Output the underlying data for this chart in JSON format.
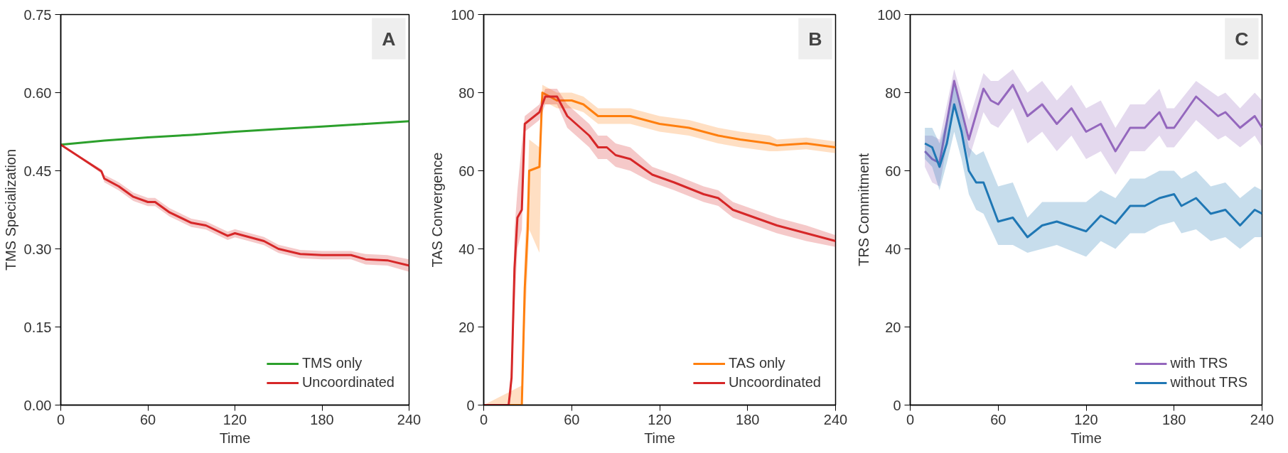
{
  "chart_data": [
    {
      "type": "line",
      "xlabel": "Time",
      "ylabel": "TMS Specialization",
      "annotations": [
        "A"
      ],
      "xlim": [
        0,
        240
      ],
      "ylim": [
        0,
        0.75
      ],
      "xticks": [
        0,
        60,
        120,
        180,
        240
      ],
      "yticks": [
        {
          "value": 0,
          "label": "0.00"
        },
        {
          "value": 0.15,
          "label": "0.15"
        },
        {
          "value": 0.3,
          "label": "0.30"
        },
        {
          "value": 0.45,
          "label": "0.45"
        },
        {
          "value": 0.6,
          "label": "0.60"
        },
        {
          "value": 0.75,
          "label": "0.75"
        }
      ],
      "grid": false,
      "legend": "bottom right",
      "line_style": "solid",
      "marker": "none",
      "series": [
        {
          "name": "TMS only",
          "color": "#2ca02c",
          "x": [
            0,
            30,
            60,
            90,
            120,
            150,
            180,
            210,
            240
          ],
          "values": [
            0.5,
            0.508,
            0.514,
            0.519,
            0.525,
            0.53,
            0.535,
            0.54,
            0.545
          ]
        },
        {
          "name": "Uncoordinated",
          "color": "#d62728",
          "x": [
            0,
            28,
            30,
            40,
            50,
            60,
            65,
            75,
            90,
            100,
            115,
            120,
            140,
            150,
            165,
            180,
            200,
            210,
            225,
            240
          ],
          "values": [
            0.5,
            0.449,
            0.435,
            0.42,
            0.4,
            0.39,
            0.39,
            0.37,
            0.35,
            0.345,
            0.325,
            0.33,
            0.315,
            0.3,
            0.29,
            0.288,
            0.288,
            0.28,
            0.278,
            0.268
          ],
          "lower": [
            0.5,
            0.445,
            0.428,
            0.412,
            0.392,
            0.382,
            0.382,
            0.362,
            0.342,
            0.337,
            0.317,
            0.322,
            0.307,
            0.292,
            0.282,
            0.28,
            0.28,
            0.27,
            0.268,
            0.256
          ],
          "upper": [
            0.5,
            0.453,
            0.442,
            0.428,
            0.408,
            0.398,
            0.398,
            0.378,
            0.358,
            0.353,
            0.333,
            0.338,
            0.323,
            0.308,
            0.298,
            0.296,
            0.296,
            0.29,
            0.288,
            0.28
          ]
        }
      ]
    },
    {
      "type": "line",
      "xlabel": "Time",
      "ylabel": "TAS Convergence",
      "annotations": [
        "B"
      ],
      "xlim": [
        0,
        240
      ],
      "ylim": [
        0,
        100
      ],
      "xticks": [
        0,
        60,
        120,
        180,
        240
      ],
      "yticks": [
        0,
        20,
        40,
        60,
        80,
        100
      ],
      "grid": false,
      "legend": "bottom right",
      "line_style": "solid",
      "marker": "none",
      "series": [
        {
          "name": "TAS only",
          "color": "#ff7f0e",
          "x": [
            0,
            26,
            28,
            30,
            31,
            38,
            40,
            45,
            50,
            60,
            68,
            78,
            100,
            110,
            120,
            140,
            160,
            175,
            195,
            200,
            220,
            240
          ],
          "values": [
            0,
            0,
            30,
            45,
            60,
            61,
            80,
            79,
            78,
            78,
            77,
            74,
            74,
            73,
            72,
            71,
            69,
            68,
            67,
            66.5,
            67,
            66
          ],
          "lower": [
            0,
            0,
            20,
            35,
            45,
            39,
            77,
            77,
            76,
            76,
            75,
            72,
            72,
            71,
            70,
            69,
            67,
            66,
            65,
            65,
            65.5,
            64.5
          ],
          "upper": [
            0,
            5,
            40,
            55,
            68,
            66,
            82,
            81,
            80,
            80,
            79,
            76,
            76,
            75,
            74,
            73,
            71,
            70,
            69,
            68,
            68.5,
            67.5
          ]
        },
        {
          "name": "Uncoordinated",
          "color": "#d62728",
          "x": [
            0,
            17,
            19,
            21,
            23,
            26,
            28,
            38,
            42,
            50,
            57,
            63,
            72,
            78,
            84,
            90,
            100,
            115,
            130,
            150,
            160,
            170,
            185,
            200,
            210,
            220,
            240
          ],
          "values": [
            0,
            0,
            7,
            35,
            48,
            50,
            72,
            75,
            79,
            79,
            74,
            72,
            69,
            66,
            66,
            64,
            63,
            59,
            57,
            54,
            53,
            50,
            48,
            46,
            45,
            44,
            42
          ],
          "lower": [
            0,
            0,
            3,
            25,
            40,
            45,
            70,
            73,
            77,
            77,
            71,
            69,
            66,
            63,
            63,
            61,
            60,
            57,
            55,
            52,
            51,
            48,
            46,
            44,
            43,
            42,
            40.5
          ],
          "upper": [
            0,
            0,
            11,
            45,
            55,
            67,
            74,
            77,
            81,
            81,
            77,
            75,
            72,
            69,
            69,
            67,
            66,
            61,
            59,
            56,
            55,
            52,
            50,
            48,
            47,
            46,
            43.5
          ]
        }
      ]
    },
    {
      "type": "line",
      "xlabel": "Time",
      "ylabel": "TRS Commitment",
      "annotations": [
        "C"
      ],
      "xlim": [
        0,
        240
      ],
      "ylim": [
        0,
        100
      ],
      "xticks": [
        0,
        60,
        120,
        180,
        240
      ],
      "yticks": [
        0,
        20,
        40,
        60,
        80,
        100
      ],
      "grid": false,
      "legend": "bottom right",
      "line_style": "solid",
      "marker": "none",
      "series": [
        {
          "name": "with TRS",
          "color": "#9467bd",
          "x": [
            10,
            15,
            20,
            30,
            40,
            50,
            55,
            60,
            70,
            80,
            90,
            100,
            110,
            120,
            130,
            140,
            150,
            160,
            170,
            175,
            180,
            195,
            210,
            215,
            225,
            235,
            240
          ],
          "values": [
            65,
            63,
            62,
            83,
            68,
            81,
            78,
            77,
            82,
            74,
            77,
            72,
            76,
            70,
            72,
            65,
            71,
            71,
            75,
            71,
            71,
            79,
            74,
            75,
            71,
            74,
            71
          ],
          "lower": [
            61,
            57,
            56,
            77,
            63,
            75,
            72,
            71,
            76,
            67,
            70,
            65,
            69,
            63,
            65,
            59,
            65,
            65,
            69,
            66,
            66,
            73,
            68,
            69,
            66,
            69,
            66
          ],
          "upper": [
            69,
            69,
            68,
            86,
            73,
            85,
            83,
            83,
            86,
            80,
            83,
            78,
            82,
            76,
            78,
            71,
            77,
            77,
            81,
            76,
            76,
            83,
            79,
            80,
            76,
            80,
            78
          ]
        },
        {
          "name": "without TRS",
          "color": "#1f77b4",
          "x": [
            10,
            15,
            20,
            25,
            30,
            35,
            40,
            45,
            50,
            60,
            70,
            80,
            90,
            100,
            120,
            130,
            140,
            150,
            160,
            170,
            180,
            185,
            195,
            205,
            215,
            225,
            235,
            240
          ],
          "values": [
            67,
            66,
            61,
            67,
            77,
            70,
            60,
            57,
            57,
            47,
            48,
            43,
            46,
            47,
            44.5,
            48.5,
            46.5,
            51,
            51,
            53,
            54,
            51,
            53,
            49,
            50,
            46,
            50,
            49
          ],
          "lower": [
            63,
            61,
            55,
            62,
            70,
            63,
            54,
            50,
            49,
            41,
            41,
            39,
            40,
            41,
            38,
            42,
            40,
            44,
            44,
            46,
            47,
            44,
            45,
            42,
            43,
            40,
            43,
            43
          ],
          "upper": [
            71,
            71,
            67,
            73,
            82,
            76,
            66,
            64,
            65,
            56,
            57,
            48,
            52,
            52,
            52,
            55,
            53,
            58,
            58,
            60,
            60,
            58,
            60,
            56,
            57,
            53,
            56,
            55
          ]
        }
      ]
    }
  ]
}
